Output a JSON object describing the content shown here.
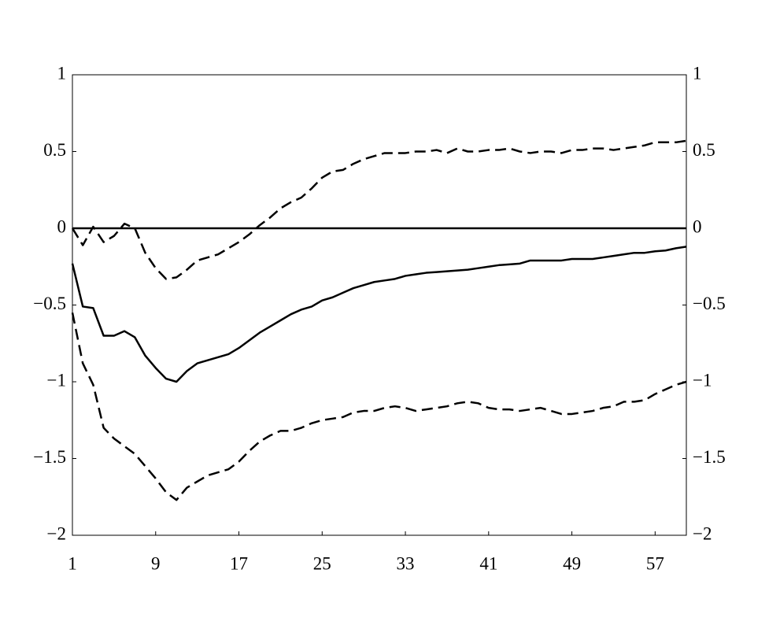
{
  "chart_data": {
    "type": "line",
    "x": [
      1,
      2,
      3,
      4,
      5,
      6,
      7,
      8,
      9,
      10,
      11,
      12,
      13,
      14,
      15,
      16,
      17,
      18,
      19,
      20,
      21,
      22,
      23,
      24,
      25,
      26,
      27,
      28,
      29,
      30,
      31,
      32,
      33,
      34,
      35,
      36,
      37,
      38,
      39,
      40,
      41,
      42,
      43,
      44,
      45,
      46,
      47,
      48,
      49,
      50,
      51,
      52,
      53,
      54,
      55,
      56,
      57,
      58,
      59,
      60
    ],
    "series": [
      {
        "color": "#000000",
        "dash": false,
        "values": [
          -0.23,
          -0.51,
          -0.52,
          -0.7,
          -0.7,
          -0.67,
          -0.71,
          -0.83,
          -0.91,
          -0.98,
          -1.0,
          -0.93,
          -0.88,
          -0.86,
          -0.84,
          -0.82,
          -0.78,
          -0.73,
          -0.68,
          -0.64,
          -0.6,
          -0.56,
          -0.53,
          -0.51,
          -0.47,
          -0.45,
          -0.42,
          -0.39,
          -0.37,
          -0.35,
          -0.34,
          -0.33,
          -0.31,
          -0.3,
          -0.29,
          -0.285,
          -0.28,
          -0.275,
          -0.27,
          -0.26,
          -0.25,
          -0.24,
          -0.235,
          -0.23,
          -0.21,
          -0.21,
          -0.21,
          -0.21,
          -0.2,
          -0.2,
          -0.2,
          -0.19,
          -0.18,
          -0.17,
          -0.16,
          -0.16,
          -0.15,
          -0.145,
          -0.13,
          -0.12
        ]
      },
      {
        "color": "#000000",
        "dash": true,
        "values": [
          0.0,
          -0.11,
          0.01,
          -0.09,
          -0.05,
          0.03,
          0.0,
          -0.16,
          -0.26,
          -0.33,
          -0.32,
          -0.27,
          -0.21,
          -0.19,
          -0.17,
          -0.13,
          -0.09,
          -0.04,
          0.02,
          0.07,
          0.13,
          0.17,
          0.2,
          0.26,
          0.33,
          0.37,
          0.38,
          0.42,
          0.45,
          0.47,
          0.49,
          0.49,
          0.49,
          0.5,
          0.5,
          0.51,
          0.49,
          0.52,
          0.5,
          0.5,
          0.51,
          0.51,
          0.52,
          0.5,
          0.49,
          0.5,
          0.5,
          0.49,
          0.51,
          0.51,
          0.52,
          0.52,
          0.51,
          0.52,
          0.53,
          0.54,
          0.56,
          0.56,
          0.56,
          0.57
        ]
      },
      {
        "color": "#000000",
        "dash": true,
        "values": [
          -0.55,
          -0.88,
          -1.02,
          -1.3,
          -1.37,
          -1.42,
          -1.47,
          -1.55,
          -1.63,
          -1.72,
          -1.77,
          -1.69,
          -1.65,
          -1.61,
          -1.59,
          -1.57,
          -1.52,
          -1.45,
          -1.39,
          -1.35,
          -1.32,
          -1.32,
          -1.3,
          -1.27,
          -1.25,
          -1.24,
          -1.23,
          -1.2,
          -1.19,
          -1.19,
          -1.17,
          -1.16,
          -1.17,
          -1.19,
          -1.18,
          -1.17,
          -1.16,
          -1.14,
          -1.13,
          -1.14,
          -1.17,
          -1.18,
          -1.18,
          -1.19,
          -1.18,
          -1.17,
          -1.19,
          -1.21,
          -1.21,
          -1.2,
          -1.19,
          -1.17,
          -1.16,
          -1.13,
          -1.13,
          -1.12,
          -1.08,
          -1.05,
          -1.02,
          -1.0
        ]
      }
    ],
    "xlim": [
      1,
      60
    ],
    "xticks": [
      1,
      9,
      17,
      25,
      33,
      41,
      49,
      57
    ],
    "ylim": [
      -2,
      1
    ],
    "yticks": [
      1,
      0.5,
      0,
      {
        "value": -0.5,
        "label": "−0.5"
      },
      {
        "value": -1,
        "label": "−1"
      },
      {
        "value": -1.5,
        "label": "−1.5"
      },
      {
        "value": -2,
        "label": "−2"
      }
    ],
    "zero_line": true,
    "grid": false
  }
}
